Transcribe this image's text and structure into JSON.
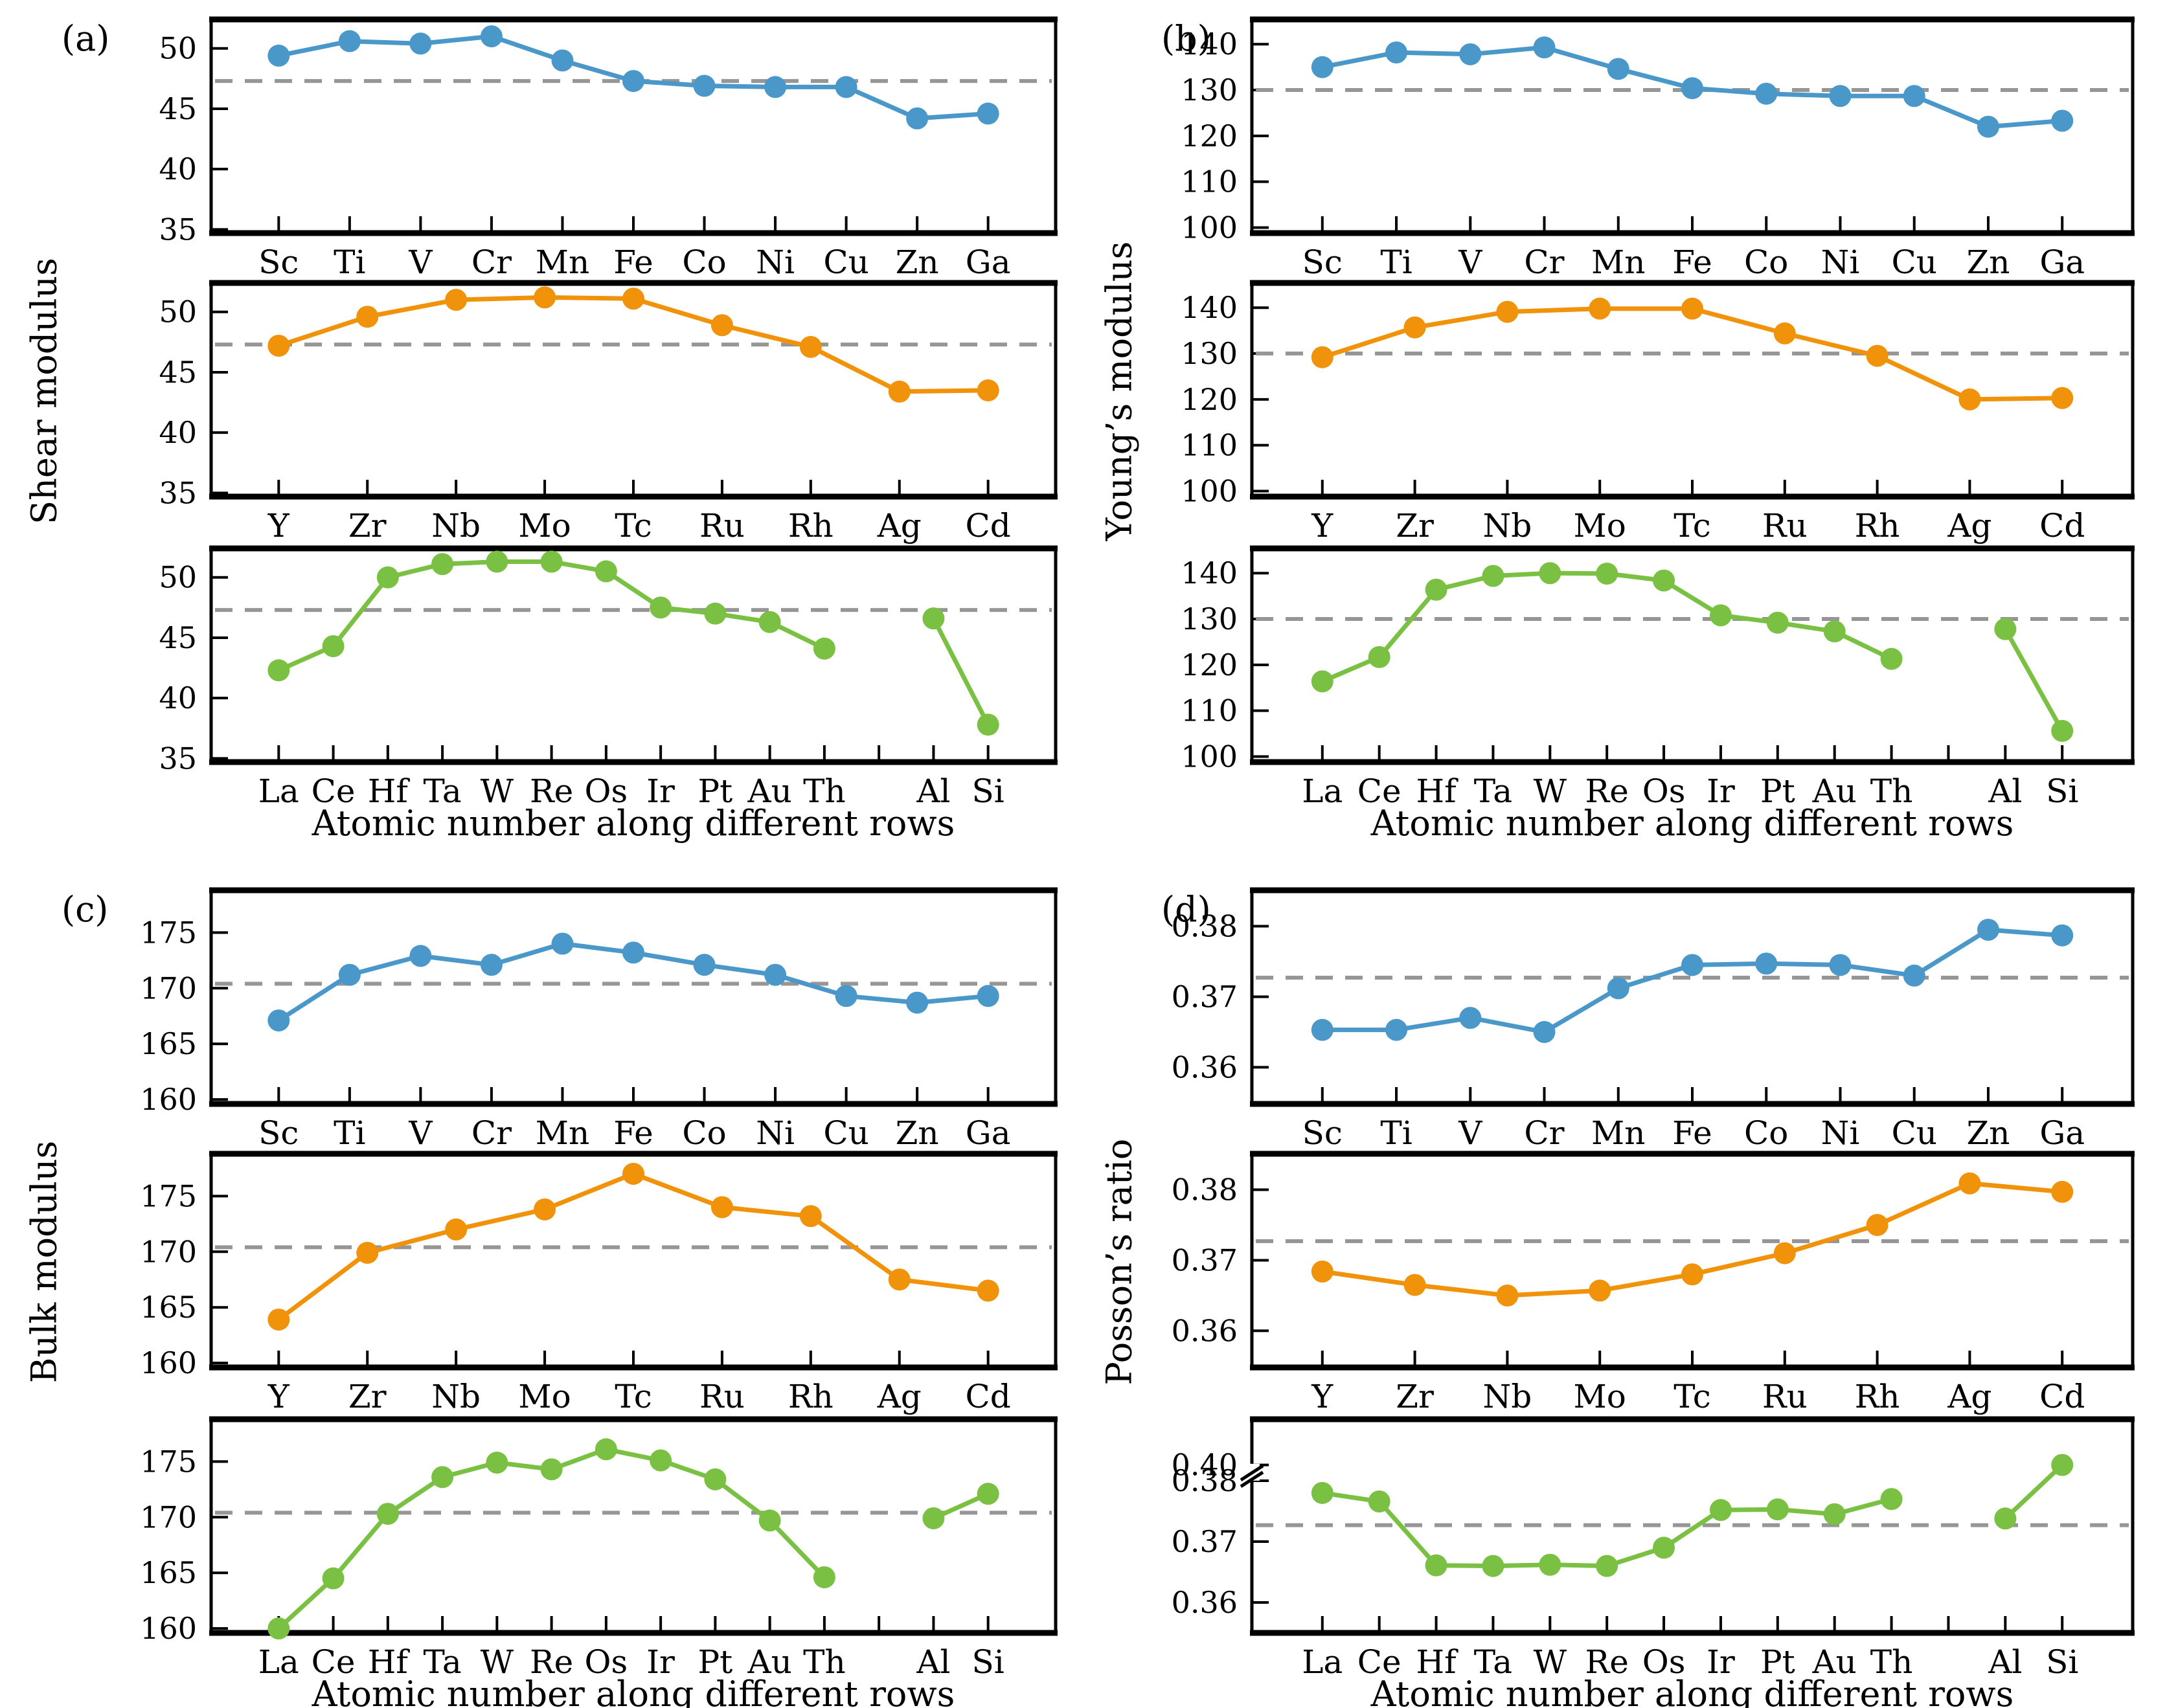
{
  "figure_title": "",
  "style": {
    "blue": "#4a97c9",
    "orange": "#f0930a",
    "green": "#7ac143",
    "dashed_gray": "#969696",
    "axis_color": "#000000",
    "background": "#ffffff"
  },
  "chart_data": [
    {
      "type": "line",
      "label": "(a)",
      "ylabel": "Shear modulus",
      "xlabel": "Atomic number along different rows",
      "dashed_mean": 47.3,
      "ylim": [
        34.7,
        52.4
      ],
      "yticks": [
        35,
        40,
        45,
        50
      ],
      "tick_decimals": 0,
      "legend": "none",
      "subplots": [
        {
          "row": "3d",
          "color": "#4a97c9",
          "categories": [
            "Sc",
            "Ti",
            "V",
            "Cr",
            "Mn",
            "Fe",
            "Co",
            "Ni",
            "Cu",
            "Zn",
            "Ga"
          ],
          "values": [
            49.4,
            50.6,
            50.4,
            51.0,
            49.0,
            47.3,
            46.9,
            46.8,
            46.8,
            44.2,
            44.6
          ]
        },
        {
          "row": "4d",
          "color": "#f0930a",
          "categories": [
            "Y",
            "Zr",
            "Nb",
            "Mo",
            "Tc",
            "Ru",
            "Rh",
            "Ag",
            "Cd"
          ],
          "values": [
            47.2,
            49.6,
            51.0,
            51.2,
            51.1,
            48.9,
            47.1,
            43.4,
            43.5
          ]
        },
        {
          "row": "5d",
          "color": "#7ac143",
          "categories": [
            "La",
            "Ce",
            "Hf",
            "Ta",
            "W",
            "Re",
            "Os",
            "Ir",
            "Pt",
            "Au",
            "Th",
            "",
            "Al",
            "Si"
          ],
          "values": [
            42.3,
            44.3,
            50.0,
            51.1,
            51.3,
            51.3,
            50.5,
            47.5,
            47.0,
            46.3,
            44.1,
            null,
            46.6,
            37.8
          ]
        }
      ]
    },
    {
      "type": "line",
      "label": "(b)",
      "ylabel": "Young’s modulus",
      "xlabel": "Atomic number along different rows",
      "dashed_mean": 130.0,
      "ylim": [
        98.8,
        145.4
      ],
      "yticks": [
        100,
        110,
        120,
        130,
        140
      ],
      "tick_decimals": 0,
      "legend": "none",
      "subplots": [
        {
          "row": "3d",
          "color": "#4a97c9",
          "categories": [
            "Sc",
            "Ti",
            "V",
            "Cr",
            "Mn",
            "Fe",
            "Co",
            "Ni",
            "Cu",
            "Zn",
            "Ga"
          ],
          "values": [
            135.0,
            138.2,
            137.8,
            139.3,
            134.6,
            130.4,
            129.2,
            128.7,
            128.7,
            122.0,
            123.3
          ]
        },
        {
          "row": "4d",
          "color": "#f0930a",
          "categories": [
            "Y",
            "Zr",
            "Nb",
            "Mo",
            "Tc",
            "Ru",
            "Rh",
            "Ag",
            "Cd"
          ],
          "values": [
            129.2,
            135.7,
            139.1,
            139.8,
            139.8,
            134.4,
            129.5,
            120.0,
            120.3
          ]
        },
        {
          "row": "5d",
          "color": "#7ac143",
          "categories": [
            "La",
            "Ce",
            "Hf",
            "Ta",
            "W",
            "Re",
            "Os",
            "Ir",
            "Pt",
            "Au",
            "Th",
            "",
            "Al",
            "Si"
          ],
          "values": [
            116.4,
            121.7,
            136.4,
            139.4,
            140.0,
            139.9,
            138.4,
            130.8,
            129.2,
            127.3,
            121.3,
            null,
            127.8,
            105.6
          ]
        }
      ]
    },
    {
      "type": "line",
      "label": "(c)",
      "ylabel": "Bulk modulus",
      "xlabel": "Atomic number along different rows",
      "dashed_mean": 170.4,
      "ylim": [
        159.6,
        178.8
      ],
      "yticks": [
        160,
        165,
        170,
        175
      ],
      "tick_decimals": 0,
      "legend": "none",
      "subplots": [
        {
          "row": "3d",
          "color": "#4a97c9",
          "categories": [
            "Sc",
            "Ti",
            "V",
            "Cr",
            "Mn",
            "Fe",
            "Co",
            "Ni",
            "Cu",
            "Zn",
            "Ga"
          ],
          "values": [
            167.1,
            171.2,
            172.9,
            172.1,
            174.0,
            173.2,
            172.1,
            171.2,
            169.3,
            168.7,
            169.3
          ]
        },
        {
          "row": "4d",
          "color": "#f0930a",
          "categories": [
            "Y",
            "Zr",
            "Nb",
            "Mo",
            "Tc",
            "Ru",
            "Rh",
            "Ag",
            "Cd"
          ],
          "values": [
            163.9,
            169.9,
            172.0,
            173.8,
            177.0,
            174.0,
            173.2,
            167.5,
            166.5
          ]
        },
        {
          "row": "5d",
          "color": "#7ac143",
          "categories": [
            "La",
            "Ce",
            "Hf",
            "Ta",
            "W",
            "Re",
            "Os",
            "Ir",
            "Pt",
            "Au",
            "Th",
            "",
            "Al",
            "Si"
          ],
          "values": [
            160.0,
            164.5,
            170.3,
            173.6,
            174.9,
            174.3,
            176.1,
            175.1,
            173.4,
            169.7,
            164.6,
            null,
            169.9,
            172.1
          ]
        }
      ]
    },
    {
      "type": "line",
      "label": "(d)",
      "ylabel": "Posson’s ratio",
      "xlabel": "Atomic number along different rows",
      "dashed_mean": 0.3727,
      "ylim": [
        0.3548,
        0.3851
      ],
      "yticks": [
        0.36,
        0.37,
        0.38
      ],
      "tick_decimals": 2,
      "legend": "none",
      "subplots": [
        {
          "row": "3d",
          "color": "#4a97c9",
          "categories": [
            "Sc",
            "Ti",
            "V",
            "Cr",
            "Mn",
            "Fe",
            "Co",
            "Ni",
            "Cu",
            "Zn",
            "Ga"
          ],
          "values": [
            0.3653,
            0.3653,
            0.367,
            0.365,
            0.3712,
            0.3745,
            0.3747,
            0.3745,
            0.373,
            0.3795,
            0.3787
          ]
        },
        {
          "row": "4d",
          "color": "#f0930a",
          "categories": [
            "Y",
            "Zr",
            "Nb",
            "Mo",
            "Tc",
            "Ru",
            "Rh",
            "Ag",
            "Cd"
          ],
          "values": [
            0.3684,
            0.3665,
            0.365,
            0.3657,
            0.368,
            0.371,
            0.375,
            0.3809,
            0.3797
          ]
        },
        {
          "row": "5d",
          "color": "#7ac143",
          "broken_axis": true,
          "yticks": [
            0.36,
            0.37,
            0.38,
            0.4
          ],
          "anchors": [
            [
              0.355,
              0.0
            ],
            [
              0.38,
              0.712
            ],
            [
              0.4,
              0.786
            ],
            [
              0.425,
              1.0
            ]
          ],
          "break_frac": 0.752,
          "categories": [
            "La",
            "Ce",
            "Hf",
            "Ta",
            "W",
            "Re",
            "Os",
            "Ir",
            "Pt",
            "Au",
            "Th",
            "",
            "Al",
            "Si"
          ],
          "values": [
            0.378,
            0.3766,
            0.3661,
            0.366,
            0.3662,
            0.366,
            0.369,
            0.3752,
            0.3753,
            0.3745,
            0.377,
            null,
            0.3738,
            0.4
          ]
        }
      ]
    }
  ]
}
